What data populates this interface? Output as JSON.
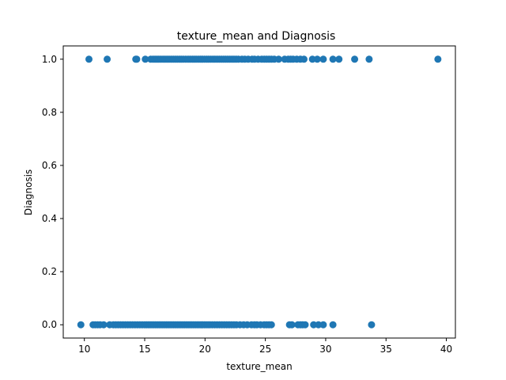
{
  "chart_data": {
    "type": "scatter",
    "title": "texture_mean and Diagnosis",
    "xlabel": "texture_mean",
    "ylabel": "Diagnosis",
    "xlim": [
      8.25,
      40.75
    ],
    "ylim": [
      -0.05,
      1.05
    ],
    "xticks": [
      10,
      15,
      20,
      25,
      30,
      35,
      40
    ],
    "yticks": [
      0.0,
      0.2,
      0.4,
      0.6,
      0.8,
      1.0
    ],
    "xtick_labels": [
      "10",
      "15",
      "20",
      "25",
      "30",
      "35",
      "40"
    ],
    "ytick_labels": [
      "0.0",
      "0.2",
      "0.4",
      "0.6",
      "0.8",
      "1.0"
    ],
    "grid": false,
    "marker_color": "#1f77b4",
    "series": [
      {
        "x": [
          10.38,
          11.89,
          14.26,
          14.34,
          15.05,
          15.5,
          15.7,
          15.86,
          16.02,
          16.17,
          16.34,
          16.52,
          16.68,
          16.85,
          17.02,
          17.2,
          17.37,
          17.54,
          17.7,
          17.88,
          18.03,
          18.2,
          18.4,
          18.6,
          18.77,
          18.95,
          19.1,
          19.26,
          19.44,
          19.6,
          19.78,
          19.96,
          20.14,
          20.3,
          20.48,
          20.66,
          20.82,
          21.0,
          21.18,
          21.36,
          21.54,
          21.7,
          21.88,
          22.06,
          22.24,
          22.4,
          22.58,
          22.77,
          23.06,
          23.3,
          23.58,
          23.9,
          24.1,
          24.4,
          24.7,
          24.91,
          25.1,
          25.3,
          25.5,
          25.74,
          26.1,
          26.6,
          26.9,
          27.1,
          27.3,
          27.6,
          27.9,
          28.2,
          28.9,
          29.3,
          29.8,
          30.6,
          31.1,
          32.4,
          33.6,
          39.3
        ],
        "y": [
          1,
          1,
          1,
          1,
          1,
          1,
          1,
          1,
          1,
          1,
          1,
          1,
          1,
          1,
          1,
          1,
          1,
          1,
          1,
          1,
          1,
          1,
          1,
          1,
          1,
          1,
          1,
          1,
          1,
          1,
          1,
          1,
          1,
          1,
          1,
          1,
          1,
          1,
          1,
          1,
          1,
          1,
          1,
          1,
          1,
          1,
          1,
          1,
          1,
          1,
          1,
          1,
          1,
          1,
          1,
          1,
          1,
          1,
          1,
          1,
          1,
          1,
          1,
          1,
          1,
          1,
          1,
          1,
          1,
          1,
          1,
          1,
          1,
          1,
          1,
          1
        ]
      },
      {
        "x": [
          9.71,
          10.72,
          10.9,
          11.1,
          11.3,
          11.6,
          12.1,
          12.4,
          12.6,
          12.8,
          13.0,
          13.2,
          13.4,
          13.6,
          13.8,
          14.0,
          14.2,
          14.4,
          14.6,
          14.8,
          15.0,
          15.15,
          15.3,
          15.45,
          15.6,
          15.75,
          15.9,
          16.05,
          16.2,
          16.35,
          16.5,
          16.65,
          16.8,
          16.95,
          17.1,
          17.25,
          17.4,
          17.55,
          17.7,
          17.85,
          18.0,
          18.15,
          18.3,
          18.45,
          18.6,
          18.75,
          18.9,
          19.05,
          19.2,
          19.35,
          19.5,
          19.65,
          19.8,
          19.95,
          20.1,
          20.25,
          20.4,
          20.6,
          20.8,
          21.0,
          21.2,
          21.4,
          21.6,
          21.8,
          22.0,
          22.2,
          22.4,
          22.6,
          22.9,
          23.2,
          23.5,
          23.85,
          24.1,
          24.3,
          24.6,
          24.9,
          25.1,
          25.3,
          25.5,
          27.0,
          27.2,
          27.7,
          27.9,
          28.1,
          28.3,
          29.0,
          29.4,
          29.8,
          30.6,
          33.8
        ],
        "y": [
          0,
          0,
          0,
          0,
          0,
          0,
          0,
          0,
          0,
          0,
          0,
          0,
          0,
          0,
          0,
          0,
          0,
          0,
          0,
          0,
          0,
          0,
          0,
          0,
          0,
          0,
          0,
          0,
          0,
          0,
          0,
          0,
          0,
          0,
          0,
          0,
          0,
          0,
          0,
          0,
          0,
          0,
          0,
          0,
          0,
          0,
          0,
          0,
          0,
          0,
          0,
          0,
          0,
          0,
          0,
          0,
          0,
          0,
          0,
          0,
          0,
          0,
          0,
          0,
          0,
          0,
          0,
          0,
          0,
          0,
          0,
          0,
          0,
          0,
          0,
          0,
          0,
          0,
          0,
          0,
          0,
          0,
          0,
          0,
          0,
          0,
          0,
          0,
          0,
          0
        ]
      }
    ]
  }
}
